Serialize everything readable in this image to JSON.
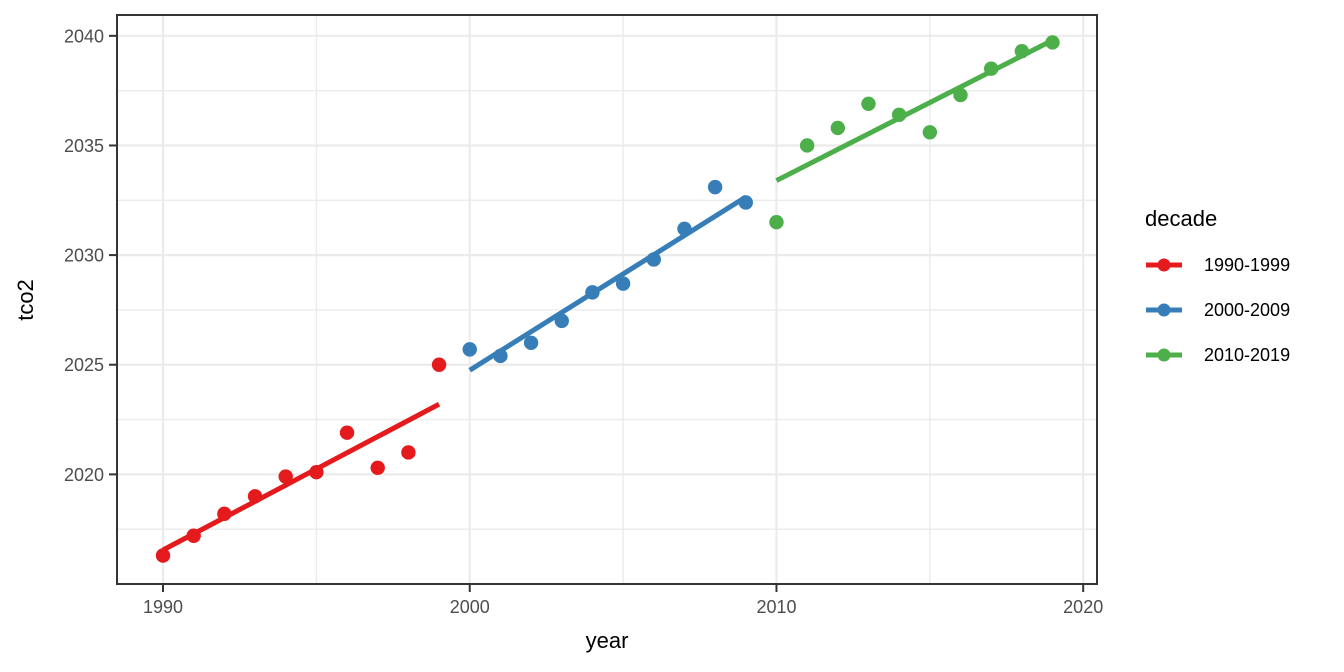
{
  "chart_data": {
    "type": "scatter",
    "title": "",
    "xlabel": "year",
    "ylabel": "tco2",
    "grid": true,
    "legend_position": "right",
    "x_axis": {
      "label": "year",
      "major_ticks": [
        1990,
        2000,
        2010,
        2020
      ],
      "minor_ticks": [
        1995,
        2005,
        2015
      ],
      "range": [
        1988.5,
        2020.45
      ]
    },
    "y_axis": {
      "label": "tco2",
      "major_ticks": [
        2020,
        2025,
        2030,
        2035,
        2040
      ],
      "minor_ticks": [
        2017.5,
        2022.5,
        2027.5,
        2032.5,
        2037.5
      ],
      "range": [
        2015.0,
        2040.95
      ]
    },
    "legend": {
      "title": "decade",
      "items": [
        {
          "label": "1990-1999",
          "color": "#E41A1C"
        },
        {
          "label": "2000-2009",
          "color": "#377EB8"
        },
        {
          "label": "2010-2019",
          "color": "#4DAF4A"
        }
      ]
    },
    "series": [
      {
        "name": "1990-1999",
        "color": "#E41A1C",
        "points": [
          [
            1990,
            2016.3
          ],
          [
            1991,
            2017.2
          ],
          [
            1992,
            2018.2
          ],
          [
            1993,
            2019.0
          ],
          [
            1994,
            2019.9
          ],
          [
            1995,
            2020.1
          ],
          [
            1996,
            2021.9
          ],
          [
            1997,
            2020.3
          ],
          [
            1998,
            2021.0
          ],
          [
            1999,
            2025.0
          ]
        ],
        "trend": [
          [
            1990,
            2016.55
          ],
          [
            1999,
            2023.2
          ]
        ]
      },
      {
        "name": "2000-2009",
        "color": "#377EB8",
        "points": [
          [
            2000,
            2025.7
          ],
          [
            2001,
            2025.4
          ],
          [
            2002,
            2026.0
          ],
          [
            2003,
            2027.0
          ],
          [
            2004,
            2028.3
          ],
          [
            2005,
            2028.7
          ],
          [
            2006,
            2029.8
          ],
          [
            2007,
            2031.2
          ],
          [
            2008,
            2033.1
          ],
          [
            2009,
            2032.4
          ]
        ],
        "trend": [
          [
            2000,
            2024.75
          ],
          [
            2009,
            2032.65
          ]
        ]
      },
      {
        "name": "2010-2019",
        "color": "#4DAF4A",
        "points": [
          [
            2010,
            2031.5
          ],
          [
            2011,
            2035.0
          ],
          [
            2012,
            2035.8
          ],
          [
            2013,
            2036.9
          ],
          [
            2014,
            2036.4
          ],
          [
            2015,
            2035.6
          ],
          [
            2016,
            2037.3
          ],
          [
            2017,
            2038.5
          ],
          [
            2018,
            2039.3
          ],
          [
            2019,
            2039.7
          ]
        ],
        "trend": [
          [
            2010,
            2033.4
          ],
          [
            2019,
            2039.8
          ]
        ]
      }
    ],
    "panel": {
      "background": "#FFFFFF",
      "grid_color": "#EBEBEB",
      "border_color": "#333333",
      "tick_color": "#333333",
      "tick_label_color": "#4D4D4D"
    }
  }
}
